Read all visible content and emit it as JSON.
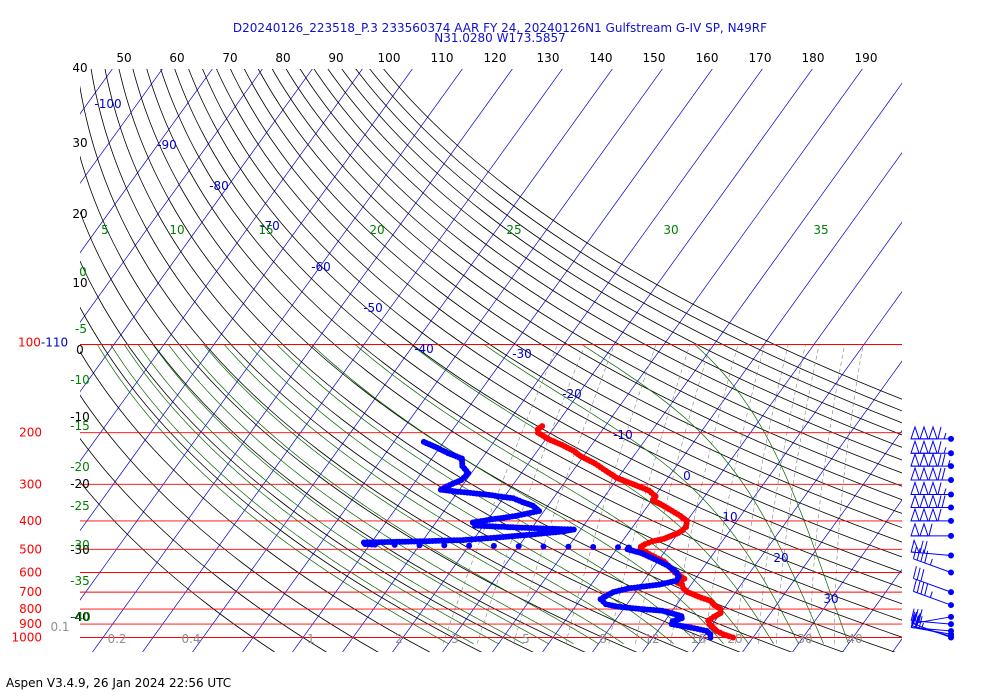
{
  "header": {
    "line1": "D20240126_223518_P.3 233560374 AAR FY 24, 20240126N1 Gulfstream G-IV SP, N49RF",
    "line2": "N31.0280 W173.5857"
  },
  "footer": "Aspen V3.4.9, 26 Jan 2024  22:56 UTC",
  "colors": {
    "isobar": "#ff0000",
    "isotherm": "#0000cc",
    "dry_adiabat": "#000000",
    "moist_adiabat": "#006400",
    "mixing_ratio": "#808080",
    "temperature_trace": "#ff0000",
    "dewpoint_trace": "#0000ff",
    "wind_barbs": "#0000ff"
  },
  "chart_data": {
    "type": "skew-t",
    "top_temperature_axis": [
      "50",
      "60",
      "70",
      "80",
      "90",
      "100",
      "110",
      "120",
      "130",
      "140",
      "150",
      "160",
      "170",
      "180",
      "190"
    ],
    "pressure_labels": [
      "100-110",
      "200",
      "300",
      "400",
      "500",
      "600",
      "700",
      "800",
      "900",
      "1000"
    ],
    "isotherm_labels": [
      "-100",
      "-90",
      "-80",
      "-70",
      "-60",
      "-50",
      "-40",
      "-30",
      "-20",
      "-10",
      "0",
      "10",
      "20",
      "30"
    ],
    "dry_adiabat_labels": [
      "40",
      "30",
      "20",
      "10",
      "0",
      "-10",
      "-20",
      "-30",
      "-40"
    ],
    "moist_adiabat_labels_top": [
      "5",
      "10",
      "15",
      "20",
      "25",
      "30",
      "35"
    ],
    "moist_adiabat_labels_left": [
      "0",
      "-5",
      "-10",
      "-15",
      "-20",
      "-25",
      "-30",
      "-35",
      "-40"
    ],
    "mixing_ratio_labels": [
      "0.1",
      "0.2",
      "0.4",
      "1",
      "2",
      "3",
      "5",
      "8",
      "12",
      "16",
      "20",
      "30",
      "40"
    ],
    "temperature_profile": [
      {
        "p": 1000,
        "t": 16.0
      },
      {
        "p": 990,
        "t": 15.0
      },
      {
        "p": 975,
        "t": 13.6
      },
      {
        "p": 950,
        "t": 11.8
      },
      {
        "p": 925,
        "t": 10.6
      },
      {
        "p": 900,
        "t": 9.4
      },
      {
        "p": 875,
        "t": 8.6
      },
      {
        "p": 850,
        "t": 9.2
      },
      {
        "p": 825,
        "t": 10.0
      },
      {
        "p": 800,
        "t": 9.4
      },
      {
        "p": 775,
        "t": 7.6
      },
      {
        "p": 750,
        "t": 6.2
      },
      {
        "p": 725,
        "t": 3.2
      },
      {
        "p": 700,
        "t": 0.4
      },
      {
        "p": 680,
        "t": -1.0
      },
      {
        "p": 660,
        "t": -1.8
      },
      {
        "p": 650,
        "t": -3.0
      },
      {
        "p": 630,
        "t": -2.2
      },
      {
        "p": 600,
        "t": -5.0
      },
      {
        "p": 575,
        "t": -6.8
      },
      {
        "p": 550,
        "t": -8.8
      },
      {
        "p": 525,
        "t": -12.0
      },
      {
        "p": 500,
        "t": -15.2
      },
      {
        "p": 490,
        "t": -15.5
      },
      {
        "p": 480,
        "t": -15.0
      },
      {
        "p": 470,
        "t": -14.0
      },
      {
        "p": 460,
        "t": -12.0
      },
      {
        "p": 450,
        "t": -11.0
      },
      {
        "p": 440,
        "t": -10.0
      },
      {
        "p": 430,
        "t": -9.5
      },
      {
        "p": 420,
        "t": -9.3
      },
      {
        "p": 400,
        "t": -10.0
      },
      {
        "p": 385,
        "t": -12.0
      },
      {
        "p": 365,
        "t": -15.2
      },
      {
        "p": 350,
        "t": -17.8
      },
      {
        "p": 340,
        "t": -19.8
      },
      {
        "p": 330,
        "t": -19.8
      },
      {
        "p": 315,
        "t": -22.0
      },
      {
        "p": 300,
        "t": -26.0
      },
      {
        "p": 285,
        "t": -30.3
      },
      {
        "p": 270,
        "t": -33.4
      },
      {
        "p": 255,
        "t": -36.6
      },
      {
        "p": 240,
        "t": -40.7
      },
      {
        "p": 230,
        "t": -42.9
      },
      {
        "p": 220,
        "t": -46.0
      },
      {
        "p": 210,
        "t": -49.6
      },
      {
        "p": 200,
        "t": -52.5
      },
      {
        "p": 195,
        "t": -53.0
      },
      {
        "p": 190,
        "t": -52.6
      }
    ],
    "dewpoint_profile": [
      {
        "p": 1000,
        "t": 11.5
      },
      {
        "p": 975,
        "t": 11.0
      },
      {
        "p": 950,
        "t": 9.8
      },
      {
        "p": 925,
        "t": 6.2
      },
      {
        "p": 900,
        "t": 1.8
      },
      {
        "p": 880,
        "t": 1.6
      },
      {
        "p": 860,
        "t": 3.0
      },
      {
        "p": 845,
        "t": 2.6
      },
      {
        "p": 825,
        "t": 0.0
      },
      {
        "p": 810,
        "t": -2.0
      },
      {
        "p": 800,
        "t": -6.4
      },
      {
        "p": 785,
        "t": -11.4
      },
      {
        "p": 770,
        "t": -14.2
      },
      {
        "p": 740,
        "t": -16.0
      },
      {
        "p": 700,
        "t": -14.5
      },
      {
        "p": 680,
        "t": -12.0
      },
      {
        "p": 660,
        "t": -6.4
      },
      {
        "p": 640,
        "t": -3.5
      },
      {
        "p": 620,
        "t": -3.6
      },
      {
        "p": 600,
        "t": -4.6
      },
      {
        "p": 570,
        "t": -7.2
      },
      {
        "p": 540,
        "t": -11.0
      },
      {
        "p": 515,
        "t": -14.5
      },
      {
        "p": 500,
        "t": -17.8
      },
      {
        "p": 493,
        "t": -17.8
      },
      {
        "p": 492,
        "t": -20.0
      },
      {
        "p": 491,
        "t": -25.0
      },
      {
        "p": 490,
        "t": -30.0
      },
      {
        "p": 489,
        "t": -35.0
      },
      {
        "p": 488,
        "t": -40.0
      },
      {
        "p": 487,
        "t": -45.0
      },
      {
        "p": 486,
        "t": -50.0
      },
      {
        "p": 485,
        "t": -55.0
      },
      {
        "p": 484,
        "t": -60.0
      },
      {
        "p": 483,
        "t": -65.0
      },
      {
        "p": 482,
        "t": -69.0
      },
      {
        "p": 480,
        "t": -71.0
      },
      {
        "p": 474,
        "t": -71.5
      },
      {
        "p": 470,
        "t": -61.0
      },
      {
        "p": 465,
        "t": -52.0
      },
      {
        "p": 455,
        "t": -45.0
      },
      {
        "p": 445,
        "t": -39.0
      },
      {
        "p": 435,
        "t": -33.5
      },
      {
        "p": 428,
        "t": -31.4
      },
      {
        "p": 422,
        "t": -42.0
      },
      {
        "p": 415,
        "t": -51.7
      },
      {
        "p": 405,
        "t": -52.6
      },
      {
        "p": 395,
        "t": -49.2
      },
      {
        "p": 385,
        "t": -45.0
      },
      {
        "p": 370,
        "t": -41.0
      },
      {
        "p": 355,
        "t": -43.0
      },
      {
        "p": 345,
        "t": -45.6
      },
      {
        "p": 335,
        "t": -48.0
      },
      {
        "p": 325,
        "t": -54.0
      },
      {
        "p": 318,
        "t": -60.0
      },
      {
        "p": 313,
        "t": -63.7
      },
      {
        "p": 305,
        "t": -63.0
      },
      {
        "p": 290,
        "t": -61.0
      },
      {
        "p": 275,
        "t": -60.6
      },
      {
        "p": 260,
        "t": -62.8
      },
      {
        "p": 245,
        "t": -64.0
      },
      {
        "p": 235,
        "t": -67.5
      },
      {
        "p": 225,
        "t": -70.5
      },
      {
        "p": 215,
        "t": -74.0
      }
    ],
    "wind_barbs": [
      {
        "p": 1000,
        "speed": 20,
        "dir": 250
      },
      {
        "p": 990,
        "speed": 22,
        "dir": 255
      },
      {
        "p": 975,
        "speed": 25,
        "dir": 260
      },
      {
        "p": 950,
        "speed": 30,
        "dir": 265
      },
      {
        "p": 900,
        "speed": 30,
        "dir": 265
      },
      {
        "p": 850,
        "speed": 10,
        "dir": 280
      },
      {
        "p": 775,
        "speed": 45,
        "dir": 250
      },
      {
        "p": 700,
        "speed": 30,
        "dir": 250
      },
      {
        "p": 600,
        "speed": 45,
        "dir": 250
      },
      {
        "p": 525,
        "speed": 70,
        "dir": 265
      },
      {
        "p": 450,
        "speed": 110,
        "dir": 270
      },
      {
        "p": 400,
        "speed": 160,
        "dir": 270
      },
      {
        "p": 360,
        "speed": 170,
        "dir": 270
      },
      {
        "p": 325,
        "speed": 165,
        "dir": 270
      },
      {
        "p": 290,
        "speed": 170,
        "dir": 270
      },
      {
        "p": 260,
        "speed": 175,
        "dir": 270
      },
      {
        "p": 235,
        "speed": 165,
        "dir": 270
      },
      {
        "p": 210,
        "speed": 165,
        "dir": 270
      }
    ]
  }
}
